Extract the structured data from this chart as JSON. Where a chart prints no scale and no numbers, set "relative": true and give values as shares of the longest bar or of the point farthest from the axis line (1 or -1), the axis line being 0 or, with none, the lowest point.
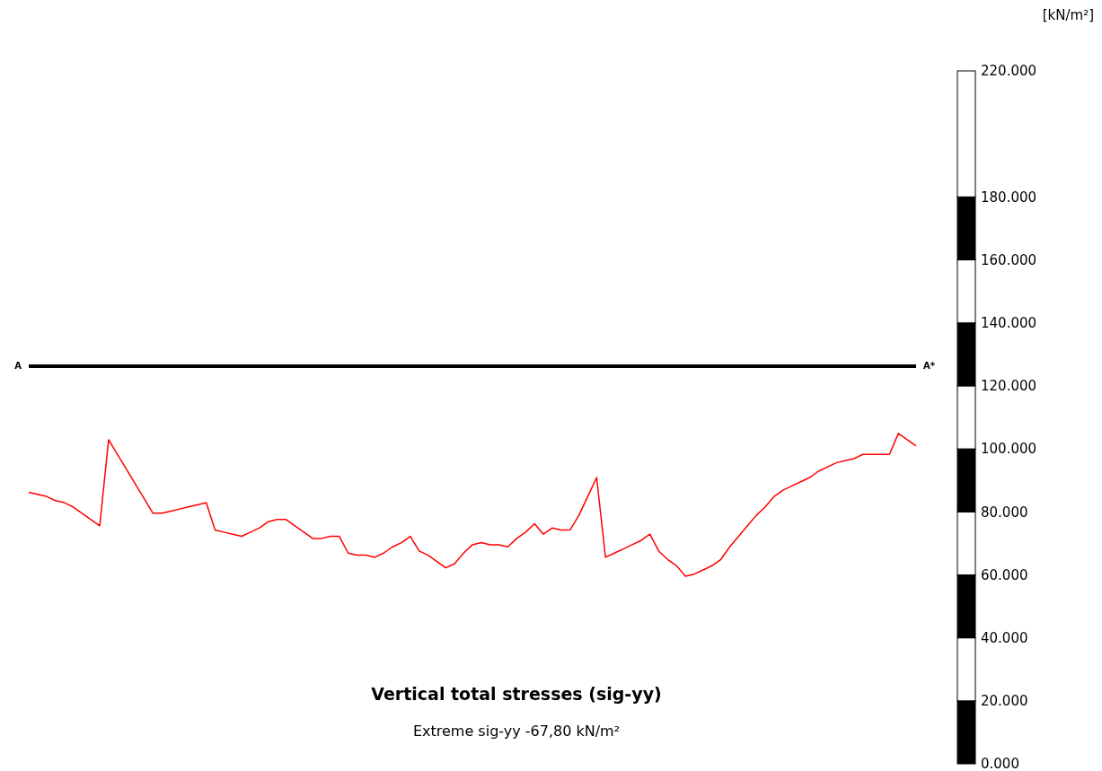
{
  "chart_data": [
    {
      "type": "line",
      "title": "Vertical total stresses (sig-yy)",
      "subtitle": "Extreme sig-yy -67,80  kN/m²",
      "relative": true,
      "tick_labels": false,
      "line_style": "solid",
      "annotations": [
        "A",
        "A*"
      ],
      "categories": [
        null,
        null,
        null,
        null,
        null,
        null,
        null,
        null,
        null,
        null,
        null,
        null,
        null,
        null,
        null,
        null,
        null,
        null,
        null,
        null,
        null,
        null,
        null,
        null,
        null,
        null,
        null,
        null,
        null,
        null,
        null,
        null,
        null,
        null,
        null,
        null,
        null,
        null,
        null,
        null,
        null,
        null,
        null,
        null,
        null,
        null,
        null,
        null,
        null,
        null,
        null,
        null,
        null,
        null,
        null,
        null,
        null,
        null,
        null,
        null,
        null,
        null,
        null,
        null,
        null,
        null,
        null,
        null,
        null,
        null,
        null,
        null,
        null,
        null,
        null,
        null,
        null,
        null,
        null,
        null,
        null,
        null,
        null,
        null,
        null,
        null,
        null,
        null,
        null,
        null,
        null,
        null,
        null,
        null,
        null,
        null,
        null,
        null,
        null,
        null,
        null
      ],
      "series": [
        {
          "color": "#ff0000",
          "values": [
            -0.6,
            -0.61,
            -0.62,
            -0.64,
            -0.65,
            -0.67,
            -0.7,
            -0.73,
            -0.76,
            -0.35,
            -0.42,
            -0.49,
            -0.56,
            -0.63,
            -0.7,
            -0.7,
            -0.69,
            -0.68,
            -0.67,
            -0.66,
            -0.65,
            -0.78,
            -0.79,
            -0.8,
            -0.81,
            -0.79,
            -0.77,
            -0.74,
            -0.73,
            -0.73,
            -0.76,
            -0.79,
            -0.82,
            -0.82,
            -0.81,
            -0.81,
            -0.89,
            -0.9,
            -0.9,
            -0.91,
            -0.89,
            -0.86,
            -0.84,
            -0.81,
            -0.88,
            -0.9,
            -0.93,
            -0.96,
            -0.94,
            -0.89,
            -0.85,
            -0.84,
            -0.85,
            -0.85,
            -0.86,
            -0.82,
            -0.79,
            -0.75,
            -0.8,
            -0.77,
            -0.78,
            -0.78,
            -0.71,
            -0.62,
            -0.53,
            -0.91,
            -0.89,
            -0.87,
            -0.85,
            -0.83,
            -0.8,
            -0.88,
            -0.92,
            -0.95,
            -1,
            -0.99,
            -0.97,
            -0.95,
            -0.92,
            -0.86,
            -0.81,
            -0.76,
            -0.71,
            -0.67,
            -0.62,
            -0.59,
            -0.57,
            -0.55,
            -0.53,
            -0.5,
            -0.48,
            -0.46,
            -0.45,
            -0.44,
            -0.42,
            -0.42,
            -0.42,
            -0.42,
            -0.32,
            -0.35,
            -0.38
          ]
        }
      ]
    },
    {
      "type": "bar",
      "stacked": true,
      "ylabel": "[kN/m²]",
      "categories": [
        null
      ],
      "ylim": [
        0,
        220
      ],
      "tick_labels": "y",
      "yticks": [
        {
          "value": 0,
          "label": "0.000"
        },
        {
          "value": 20,
          "label": "20.000"
        },
        {
          "value": 40,
          "label": "40.000"
        },
        {
          "value": 60,
          "label": "60.000"
        },
        {
          "value": 80,
          "label": "80.000"
        },
        {
          "value": 100,
          "label": "100.000"
        },
        {
          "value": 120,
          "label": "120.000"
        },
        {
          "value": 140,
          "label": "140.000"
        },
        {
          "value": 160,
          "label": "160.000"
        },
        {
          "value": 180,
          "label": "180.000"
        },
        {
          "value": 220,
          "label": "220.000"
        }
      ],
      "series": [
        {
          "color": "#000000",
          "values": [
            20
          ]
        },
        {
          "color": "#ffffff",
          "values": [
            20
          ]
        },
        {
          "color": "#000000",
          "values": [
            20
          ]
        },
        {
          "color": "#ffffff",
          "values": [
            20
          ]
        },
        {
          "color": "#000000",
          "values": [
            20
          ]
        },
        {
          "color": "#ffffff",
          "values": [
            20
          ]
        },
        {
          "color": "#000000",
          "values": [
            20
          ]
        },
        {
          "color": "#ffffff",
          "values": [
            20
          ]
        },
        {
          "color": "#000000",
          "values": [
            20
          ]
        },
        {
          "color": "#ffffff",
          "values": [
            40
          ]
        }
      ]
    }
  ]
}
